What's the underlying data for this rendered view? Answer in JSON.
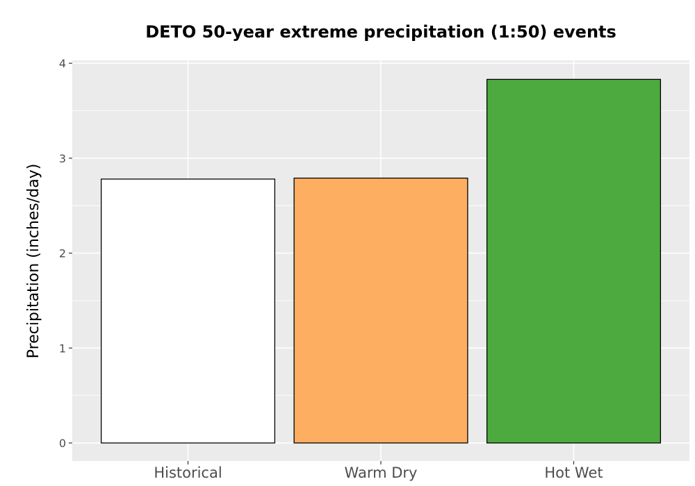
{
  "chart_data": {
    "type": "bar",
    "title": "DETO 50-year extreme precipitation (1:50) events",
    "xlabel": "",
    "ylabel": "Precipitation (inches/day)",
    "categories": [
      "Historical",
      "Warm Dry",
      "Hot Wet"
    ],
    "values": [
      2.78,
      2.79,
      3.83
    ],
    "bar_colors": [
      "#ffffff",
      "#fdae61",
      "#4daa3f"
    ],
    "bar_outline_color": "#000000",
    "panel_background": "#ebebeb",
    "grid_color": "#ffffff",
    "ylim": [
      -0.19,
      4.03
    ],
    "yticks": [
      0,
      1,
      2,
      3,
      4
    ],
    "grid": true,
    "legend": "none"
  }
}
